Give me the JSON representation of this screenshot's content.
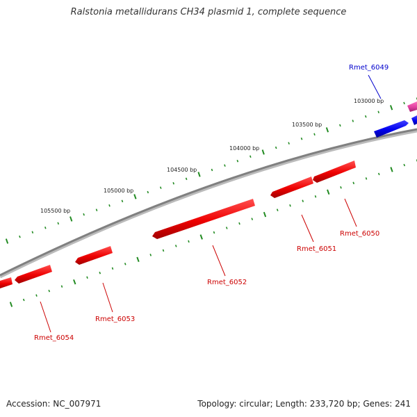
{
  "title": "Ralstonia metallidurans CH34 plasmid 1, complete sequence",
  "footer": {
    "accession": "Accession: NC_007971",
    "summary": "Topology: circular; Length: 233,720 bp; Genes: 241"
  },
  "colors": {
    "backbone": "#808080",
    "tick": "#228B22",
    "forward_gene": "#0000ee",
    "reverse_gene": "#ee0000",
    "other_gene": "#e040a0"
  },
  "scale_labels": [
    {
      "bp": 103000,
      "text": "103000 bp"
    },
    {
      "bp": 103500,
      "text": "103500 bp"
    },
    {
      "bp": 104000,
      "text": "104000 bp"
    },
    {
      "bp": 104500,
      "text": "104500 bp"
    },
    {
      "bp": 105000,
      "text": "105000 bp"
    },
    {
      "bp": 105500,
      "text": "105500 bp"
    }
  ],
  "genes": [
    {
      "name": "Rmet_6049",
      "label": "Rmet_6049",
      "strand": "forward",
      "start": 102700,
      "end": 103000
    },
    {
      "name": "Rmet_6050",
      "label": "Rmet_6050",
      "strand": "reverse",
      "start": 103280,
      "end": 103620
    },
    {
      "name": "Rmet_6051",
      "label": "Rmet_6051",
      "strand": "reverse",
      "start": 103640,
      "end": 103960
    },
    {
      "name": "Rmet_6052",
      "label": "Rmet_6052",
      "strand": "reverse",
      "start": 104200,
      "end": 104950
    },
    {
      "name": "Rmet_6053",
      "label": "Rmet_6053",
      "strand": "reverse",
      "start": 105180,
      "end": 105450
    },
    {
      "name": "Rmet_6054",
      "label": "Rmet_6054",
      "strand": "reverse",
      "start": 105700,
      "end": 105990
    }
  ]
}
